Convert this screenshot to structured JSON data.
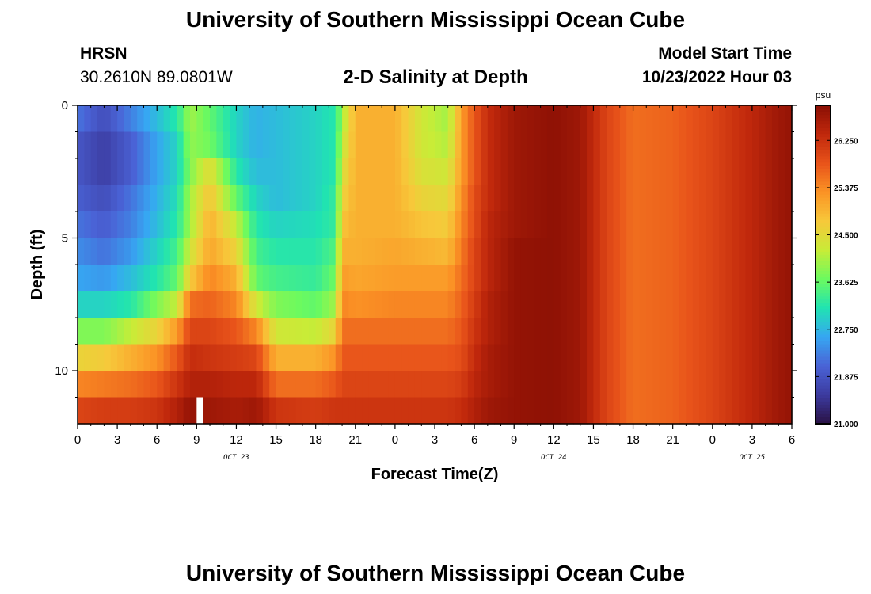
{
  "header": {
    "title": "University of Southern Mississippi Ocean Cube",
    "station": "HRSN",
    "coords": "30.2610N  89.0801W",
    "subtitle": "2-D Salinity at Depth",
    "start_label": "Model Start Time",
    "start_value": "10/23/2022 Hour 03"
  },
  "footer": {
    "title": "University of Southern Mississippi Ocean Cube"
  },
  "chart_data": {
    "type": "heatmap",
    "title": "2-D Salinity at Depth",
    "xlabel": "Forecast Time(Z)",
    "ylabel": "Depth (ft)",
    "x_ticks": [
      "0",
      "3",
      "6",
      "9",
      "12",
      "15",
      "18",
      "21",
      "0",
      "3",
      "6",
      "9",
      "12",
      "15",
      "18",
      "21",
      "0",
      "3",
      "6"
    ],
    "x_range_hours": [
      0,
      54
    ],
    "date_labels": [
      {
        "label": "OCT 23",
        "hour": 12
      },
      {
        "label": "OCT 24",
        "hour": 36
      },
      {
        "label": "OCT 25",
        "hour": 51
      }
    ],
    "y_ticks": [
      "0",
      "5",
      "10"
    ],
    "y_range_ft": [
      0,
      12
    ],
    "depth_rows_ft": [
      0.5,
      1.5,
      2.5,
      3.5,
      4.5,
      5.5,
      6.5,
      7.5,
      8.5,
      9.5,
      10.5,
      11.5
    ],
    "salinity_profile": [
      {
        "hour": 0,
        "values": [
          22.2,
          21.9,
          21.9,
          22.0,
          22.2,
          22.4,
          22.6,
          23.0,
          23.8,
          24.6,
          25.4,
          26.0
        ]
      },
      {
        "hour": 2,
        "values": [
          21.8,
          21.6,
          21.6,
          21.8,
          22.0,
          22.2,
          22.5,
          23.0,
          23.8,
          24.7,
          25.5,
          26.1
        ]
      },
      {
        "hour": 4,
        "values": [
          22.3,
          22.0,
          22.0,
          22.2,
          22.3,
          22.5,
          22.8,
          23.2,
          24.2,
          25.0,
          25.6,
          26.1
        ]
      },
      {
        "hour": 6,
        "values": [
          22.8,
          22.6,
          22.6,
          22.7,
          22.8,
          23.0,
          23.2,
          23.8,
          24.6,
          25.3,
          25.8,
          26.2
        ]
      },
      {
        "hour": 7.5,
        "values": [
          23.2,
          23.0,
          23.0,
          23.1,
          23.2,
          23.4,
          23.6,
          24.2,
          25.2,
          25.8,
          26.2,
          26.5
        ]
      },
      {
        "hour": 8.5,
        "values": [
          24.0,
          23.9,
          23.8,
          24.0,
          24.0,
          24.3,
          24.7,
          25.6,
          26.0,
          26.3,
          26.5,
          26.8
        ]
      },
      {
        "hour": 10,
        "values": [
          23.6,
          23.7,
          24.5,
          24.8,
          25.0,
          25.1,
          25.4,
          25.7,
          26.0,
          26.2,
          26.5,
          26.7
        ]
      },
      {
        "hour": 12,
        "values": [
          23.0,
          23.0,
          23.2,
          23.6,
          24.2,
          24.6,
          25.0,
          25.4,
          25.8,
          26.1,
          26.4,
          26.6
        ]
      },
      {
        "hour": 13.5,
        "values": [
          22.7,
          22.7,
          22.8,
          23.0,
          23.2,
          23.4,
          23.6,
          24.3,
          25.4,
          26.0,
          26.4,
          26.7
        ]
      },
      {
        "hour": 15,
        "values": [
          22.8,
          22.8,
          22.8,
          22.8,
          23.0,
          23.2,
          23.4,
          23.8,
          24.3,
          25.0,
          25.6,
          26.2
        ]
      },
      {
        "hour": 18,
        "values": [
          23.0,
          23.0,
          23.0,
          23.0,
          23.1,
          23.2,
          23.3,
          23.6,
          24.2,
          25.0,
          25.6,
          26.1
        ]
      },
      {
        "hour": 19.5,
        "values": [
          23.2,
          23.2,
          23.2,
          23.3,
          23.3,
          23.5,
          23.7,
          24.0,
          24.6,
          25.3,
          25.8,
          26.2
        ]
      },
      {
        "hour": 20,
        "values": [
          24.0,
          24.2,
          24.4,
          24.6,
          24.8,
          25.0,
          25.2,
          25.4,
          25.6,
          25.8,
          26.0,
          26.2
        ]
      },
      {
        "hour": 21,
        "values": [
          25.0,
          25.0,
          25.0,
          25.0,
          25.0,
          25.0,
          25.1,
          25.3,
          25.6,
          25.8,
          26.0,
          26.2
        ]
      },
      {
        "hour": 24,
        "values": [
          25.0,
          25.0,
          25.0,
          25.0,
          25.0,
          25.1,
          25.2,
          25.4,
          25.6,
          25.8,
          26.0,
          26.2
        ]
      },
      {
        "hour": 26,
        "values": [
          24.3,
          24.3,
          24.4,
          24.6,
          24.8,
          25.0,
          25.2,
          25.4,
          25.6,
          25.8,
          26.0,
          26.2
        ]
      },
      {
        "hour": 28,
        "values": [
          24.0,
          24.1,
          24.3,
          24.5,
          24.7,
          24.9,
          25.2,
          25.4,
          25.6,
          25.8,
          26.0,
          26.2
        ]
      },
      {
        "hour": 29,
        "values": [
          25.2,
          25.2,
          25.2,
          25.3,
          25.4,
          25.5,
          25.6,
          25.7,
          25.8,
          25.9,
          26.1,
          26.3
        ]
      },
      {
        "hour": 30,
        "values": [
          25.8,
          25.8,
          25.8,
          25.9,
          25.9,
          26.0,
          26.0,
          26.1,
          26.2,
          26.3,
          26.4,
          26.5
        ]
      },
      {
        "hour": 31,
        "values": [
          26.3,
          26.3,
          26.3,
          26.3,
          26.4,
          26.4,
          26.4,
          26.5,
          26.5,
          26.6,
          26.6,
          26.7
        ]
      },
      {
        "hour": 33,
        "values": [
          26.7,
          26.7,
          26.7,
          26.7,
          26.7,
          26.8,
          26.8,
          26.8,
          26.8,
          26.8,
          26.8,
          26.8
        ]
      },
      {
        "hour": 36,
        "values": [
          26.85,
          26.85,
          26.85,
          26.85,
          26.85,
          26.85,
          26.85,
          26.85,
          26.85,
          26.85,
          26.85,
          26.85
        ]
      },
      {
        "hour": 38,
        "values": [
          26.7,
          26.7,
          26.7,
          26.7,
          26.7,
          26.7,
          26.7,
          26.7,
          26.7,
          26.7,
          26.7,
          26.7
        ]
      },
      {
        "hour": 40,
        "values": [
          26.0,
          26.0,
          26.0,
          26.0,
          26.0,
          26.0,
          26.0,
          26.0,
          26.0,
          26.0,
          26.0,
          26.0
        ]
      },
      {
        "hour": 42,
        "values": [
          25.6,
          25.6,
          25.6,
          25.6,
          25.6,
          25.6,
          25.6,
          25.6,
          25.6,
          25.6,
          25.6,
          25.6
        ]
      },
      {
        "hour": 45,
        "values": [
          25.7,
          25.7,
          25.7,
          25.7,
          25.7,
          25.7,
          25.7,
          25.7,
          25.7,
          25.7,
          25.7,
          25.7
        ]
      },
      {
        "hour": 48,
        "values": [
          26.0,
          26.0,
          26.0,
          26.0,
          26.0,
          26.0,
          26.0,
          26.0,
          26.0,
          26.0,
          26.0,
          26.0
        ]
      },
      {
        "hour": 51,
        "values": [
          26.4,
          26.4,
          26.4,
          26.4,
          26.4,
          26.4,
          26.4,
          26.4,
          26.4,
          26.4,
          26.4,
          26.4
        ]
      },
      {
        "hour": 53,
        "values": [
          26.7,
          26.7,
          26.7,
          26.7,
          26.7,
          26.7,
          26.7,
          26.7,
          26.7,
          26.7,
          26.7,
          26.7
        ]
      },
      {
        "hour": 54,
        "values": [
          26.8,
          26.8,
          26.8,
          26.8,
          26.8,
          26.8,
          26.8,
          26.8,
          26.8,
          26.8,
          26.8,
          26.8
        ]
      }
    ],
    "colorbar": {
      "unit": "psu",
      "min": 21.0,
      "max": 26.9,
      "ticks": [
        "21.000",
        "21.875",
        "22.750",
        "23.625",
        "24.500",
        "25.375",
        "26.250"
      ],
      "colormap": [
        "#2a1245",
        "#3c3ba0",
        "#4a63d6",
        "#36a7f2",
        "#20e3b2",
        "#6cfa5f",
        "#c8ec37",
        "#f7c83a",
        "#fb9325",
        "#e8531a",
        "#c0280c",
        "#8a0f04"
      ]
    },
    "missing_cell": {
      "hour": 9,
      "depth_row": 11,
      "color": "#ffffff"
    }
  }
}
